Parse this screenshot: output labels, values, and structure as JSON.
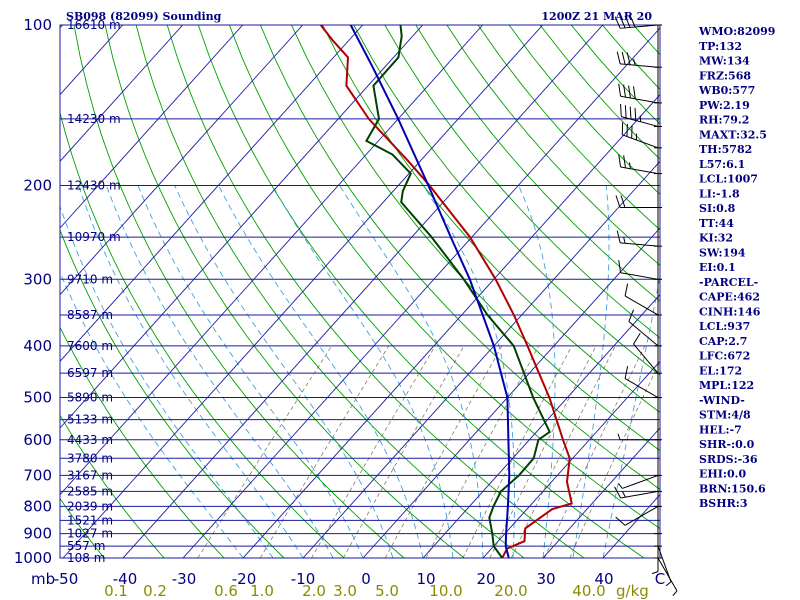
{
  "chart_data": {
    "type": "skew-t",
    "title_left": "SB098 (82099) Sounding",
    "title_right": "1200Z 21 MAR 20",
    "pressure_axis": {
      "unit": "mb",
      "range": [
        1000,
        100
      ],
      "ticks": [
        100,
        200,
        300,
        400,
        500,
        600,
        700,
        800,
        900,
        1000
      ]
    },
    "temperature_axis": {
      "unit": "C",
      "range": [
        -50,
        50
      ],
      "ticks": [
        "-50",
        "-40",
        "-30",
        "-20",
        "-10",
        "0",
        "10",
        "20",
        "30",
        "40",
        "C"
      ]
    },
    "mixing_ratio_axis": {
      "unit": "g/kg",
      "ticks": [
        "0.1",
        "0.2",
        "0.6",
        "1.0",
        "2.0",
        "3.0",
        "5.0",
        "10.0",
        "20.0",
        "40.0"
      ]
    },
    "height_levels": [
      {
        "pressure": 100,
        "label": "16610 m"
      },
      {
        "pressure": 150,
        "label": "14230 m"
      },
      {
        "pressure": 200,
        "label": "12430 m"
      },
      {
        "pressure": 250,
        "label": "10970 m"
      },
      {
        "pressure": 300,
        "label": "9710 m"
      },
      {
        "pressure": 350,
        "label": "8587 m"
      },
      {
        "pressure": 400,
        "label": "7600 m"
      },
      {
        "pressure": 450,
        "label": "6597 m"
      },
      {
        "pressure": 500,
        "label": "5890 m"
      },
      {
        "pressure": 550,
        "label": "5133 m"
      },
      {
        "pressure": 600,
        "label": "4433 m"
      },
      {
        "pressure": 650,
        "label": "3780 m"
      },
      {
        "pressure": 700,
        "label": "3167 m"
      },
      {
        "pressure": 750,
        "label": "2585 m"
      },
      {
        "pressure": 800,
        "label": "2039 m"
      },
      {
        "pressure": 850,
        "label": "1521 m"
      },
      {
        "pressure": 900,
        "label": "1027 m"
      },
      {
        "pressure": 950,
        "label": "557 m"
      },
      {
        "pressure": 1000,
        "label": "108 m"
      }
    ],
    "series": [
      {
        "name": "temperature",
        "color": "#b00000",
        "points": [
          {
            "p": 1000,
            "t": 23.2
          },
          {
            "p": 960,
            "t": 22.6
          },
          {
            "p": 930,
            "t": 24.4
          },
          {
            "p": 880,
            "t": 22.6
          },
          {
            "p": 810,
            "t": 24.2
          },
          {
            "p": 790,
            "t": 26.6
          },
          {
            "p": 720,
            "t": 22.6
          },
          {
            "p": 650,
            "t": 19.5
          },
          {
            "p": 600,
            "t": 15.6
          },
          {
            "p": 500,
            "t": 7.0
          },
          {
            "p": 450,
            "t": 1.6
          },
          {
            "p": 400,
            "t": -4.4
          },
          {
            "p": 350,
            "t": -11.3
          },
          {
            "p": 300,
            "t": -19.7
          },
          {
            "p": 250,
            "t": -30.3
          },
          {
            "p": 215,
            "t": -40.1
          },
          {
            "p": 200,
            "t": -44.8
          },
          {
            "p": 180,
            "t": -52.0
          },
          {
            "p": 150,
            "t": -64.9
          },
          {
            "p": 130,
            "t": -73.6
          },
          {
            "p": 115,
            "t": -77.6
          },
          {
            "p": 107,
            "t": -82.6
          },
          {
            "p": 100,
            "t": -87.0
          }
        ]
      },
      {
        "name": "dewpoint",
        "color": "#004000",
        "points": [
          {
            "p": 1000,
            "t": 23.2
          },
          {
            "p": 950,
            "t": 20.0
          },
          {
            "p": 900,
            "t": 17.9
          },
          {
            "p": 840,
            "t": 15.0
          },
          {
            "p": 800,
            "t": 14.0
          },
          {
            "p": 750,
            "t": 13.0
          },
          {
            "p": 700,
            "t": 13.6
          },
          {
            "p": 650,
            "t": 13.5
          },
          {
            "p": 600,
            "t": 11.5
          },
          {
            "p": 580,
            "t": 12.2
          },
          {
            "p": 500,
            "t": 4.3
          },
          {
            "p": 450,
            "t": -0.9
          },
          {
            "p": 400,
            "t": -6.7
          },
          {
            "p": 350,
            "t": -15.7
          },
          {
            "p": 300,
            "t": -25.0
          },
          {
            "p": 250,
            "t": -36.7
          },
          {
            "p": 215,
            "t": -47.0
          },
          {
            "p": 205,
            "t": -48.4
          },
          {
            "p": 190,
            "t": -49.7
          },
          {
            "p": 175,
            "t": -55.6
          },
          {
            "p": 165,
            "t": -62.0
          },
          {
            "p": 150,
            "t": -63.2
          },
          {
            "p": 130,
            "t": -69.1
          },
          {
            "p": 115,
            "t": -69.2
          },
          {
            "p": 105,
            "t": -71.8
          },
          {
            "p": 100,
            "t": -73.7
          }
        ]
      },
      {
        "name": "parcel",
        "color": "#0000b0",
        "points": [
          {
            "p": 1000,
            "t": 24.3
          },
          {
            "p": 950,
            "t": 22.0
          },
          {
            "p": 900,
            "t": 20.2
          },
          {
            "p": 800,
            "t": 16.4
          },
          {
            "p": 700,
            "t": 12.0
          },
          {
            "p": 600,
            "t": 6.5
          },
          {
            "p": 500,
            "t": 0.0
          },
          {
            "p": 400,
            "t": -10.0
          },
          {
            "p": 300,
            "t": -24.0
          },
          {
            "p": 250,
            "t": -33.5
          },
          {
            "p": 200,
            "t": -45.0
          },
          {
            "p": 150,
            "t": -60.0
          },
          {
            "p": 120,
            "t": -72.0
          },
          {
            "p": 100,
            "t": -82.0
          }
        ]
      }
    ],
    "winds": [
      {
        "p": 100,
        "dir": 265,
        "spd": 40
      },
      {
        "p": 120,
        "dir": 275,
        "spd": 35
      },
      {
        "p": 140,
        "dir": 280,
        "spd": 40
      },
      {
        "p": 155,
        "dir": 285,
        "spd": 45
      },
      {
        "p": 170,
        "dir": 290,
        "spd": 35
      },
      {
        "p": 190,
        "dir": 280,
        "spd": 25
      },
      {
        "p": 220,
        "dir": 270,
        "spd": 20
      },
      {
        "p": 260,
        "dir": 275,
        "spd": 15
      },
      {
        "p": 300,
        "dir": 280,
        "spd": 10
      },
      {
        "p": 350,
        "dir": 300,
        "spd": 10
      },
      {
        "p": 400,
        "dir": 310,
        "spd": 10
      },
      {
        "p": 450,
        "dir": 320,
        "spd": 10
      },
      {
        "p": 500,
        "dir": 300,
        "spd": 10
      },
      {
        "p": 600,
        "dir": 270,
        "spd": 5
      },
      {
        "p": 700,
        "dir": 250,
        "spd": 5
      },
      {
        "p": 750,
        "dir": 260,
        "spd": 15
      },
      {
        "p": 800,
        "dir": 240,
        "spd": 10
      },
      {
        "p": 900,
        "dir": 180,
        "spd": 5
      },
      {
        "p": 950,
        "dir": 160,
        "spd": 5
      },
      {
        "p": 1000,
        "dir": 150,
        "spd": 5
      }
    ]
  },
  "indices": [
    "WMO:82099",
    "TP:132",
    "MW:134",
    "FRZ:568",
    "WB0:577",
    "PW:2.19",
    "RH:79.2",
    "MAXT:32.5",
    "TH:5782",
    "L57:6.1",
    "LCL:1007",
    "LI:-1.8",
    "SI:0.8",
    "TT:44",
    "KI:32",
    "SW:194",
    "EI:0.1",
    "-PARCEL-",
    "CAPE:462",
    "CINH:146",
    "LCL:937",
    "CAP:2.7",
    "LFC:672",
    "EL:172",
    "MPL:122",
    "-WIND-",
    "STM:4/8",
    "HEL:-7",
    "SHR-:0.0",
    "SRDS:-36",
    "EHI:0.0",
    "BRN:150.6",
    "BSHR:3"
  ],
  "colors": {
    "isobar": "#1a1aa0",
    "isotherm": "#1a1aa0",
    "dry_adiabat": "#00a000",
    "moist_adiabat": "#40a0e0",
    "mixing_ratio": "#808060",
    "wind": "#000000",
    "text": "#000080"
  }
}
